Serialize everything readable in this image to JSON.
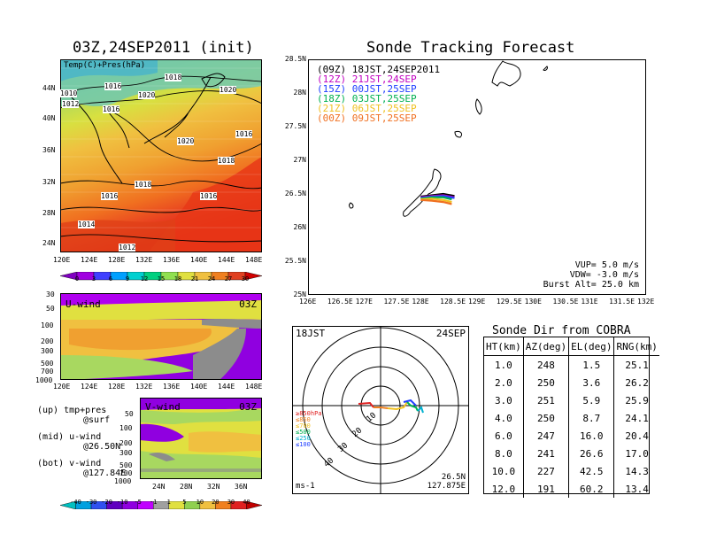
{
  "left_title": "03Z,24SEP2011 (init)",
  "right_title": "Sonde Tracking Forecast",
  "map_panel": {
    "label": "Temp(C)+Pres(hPa)",
    "lat_ticks": [
      "44N",
      "40N",
      "36N",
      "32N",
      "28N",
      "24N"
    ],
    "lon_ticks": [
      "120E",
      "124E",
      "128E",
      "132E",
      "136E",
      "140E",
      "144E",
      "148E"
    ],
    "isobars": [
      "1016",
      "1018",
      "1020",
      "1020",
      "1012",
      "1016",
      "1018",
      "1016",
      "1018",
      "1016",
      "1016",
      "1014",
      "1012",
      "1020",
      "1010"
    ],
    "colorbar_ticks": [
      "0",
      "3",
      "6",
      "9",
      "12",
      "15",
      "18",
      "21",
      "24",
      "27",
      "30"
    ],
    "colorbar_colors": [
      "#8000c0",
      "#a000e0",
      "#4040ff",
      "#00a0ff",
      "#00d0d0",
      "#00d080",
      "#90e050",
      "#e0e040",
      "#f0c040",
      "#f08020",
      "#e04020",
      "#d00000"
    ]
  },
  "u_panel": {
    "label": "U-wind",
    "time": "03Z",
    "p_ticks": [
      "30",
      "50",
      "100",
      "200",
      "300",
      "500",
      "700",
      "1000"
    ],
    "lon_ticks": [
      "120E",
      "124E",
      "128E",
      "132E",
      "136E",
      "140E",
      "144E",
      "148E"
    ]
  },
  "v_panel": {
    "label": "V-wind",
    "time": "03Z",
    "p_ticks": [
      "50",
      "100",
      "200",
      "300",
      "500",
      "700",
      "1000"
    ],
    "lat_ticks": [
      "24N",
      "28N",
      "32N",
      "36N"
    ]
  },
  "notes": [
    [
      "(up) tmp+pres",
      "@surf"
    ],
    [
      "(mid) u-wind",
      "@26.50N"
    ],
    [
      "(bot) v-wind",
      "@127.84E"
    ]
  ],
  "wind_colorbar": {
    "ticks": [
      "-40",
      "-30",
      "-20",
      "-10",
      "-5",
      "-1",
      "1",
      "5",
      "10",
      "20",
      "30",
      "40"
    ],
    "colors": [
      "#00c0c0",
      "#00a0e0",
      "#3050f0",
      "#6000c0",
      "#9000e0",
      "#c000ff",
      "#a0a0a0",
      "#e0e040",
      "#90d050",
      "#f0c040",
      "#f08020",
      "#e02020",
      "#c00000"
    ]
  },
  "track_panel": {
    "legend": [
      {
        "utc": "(09Z)",
        "text": "18JST,24SEP2011",
        "color": "#000000"
      },
      {
        "utc": "(12Z)",
        "text": "21JST,24SEP",
        "color": "#c000c0"
      },
      {
        "utc": "(15Z)",
        "text": "00JST,25SEP",
        "color": "#2040ff"
      },
      {
        "utc": "(18Z)",
        "text": "03JST,25SEP",
        "color": "#00b050"
      },
      {
        "utc": "(21Z)",
        "text": "06JST,25SEP",
        "color": "#f0c020"
      },
      {
        "utc": "(00Z)",
        "text": "09JST,25SEP",
        "color": "#f07020"
      }
    ],
    "lat_ticks": [
      "28.5N",
      "28N",
      "27.5N",
      "27N",
      "26.5N",
      "26N",
      "25.5N",
      "25N"
    ],
    "lon_ticks": [
      "126E",
      "126.5E",
      "127E",
      "127.5E",
      "128E",
      "128.5E",
      "129E",
      "129.5E",
      "130E",
      "130.5E",
      "131E",
      "131.5E",
      "132E"
    ],
    "params": [
      "VUP= 5.0 m/s",
      "VDW= -3.0 m/s",
      "Burst Alt= 25.0 km"
    ]
  },
  "chart_data": [
    {
      "type": "line",
      "title": "Sonde Tracking Forecast",
      "xlim": [
        126,
        132
      ],
      "ylim": [
        25,
        28.5
      ],
      "series": [
        {
          "name": "(09Z) 18JST,24SEP2011",
          "x": [
            128.0,
            128.2,
            128.4,
            128.6
          ],
          "y": [
            26.46,
            26.48,
            26.5,
            26.47
          ]
        },
        {
          "name": "(12Z) 21JST,24SEP",
          "x": [
            128.0,
            128.2,
            128.4,
            128.6
          ],
          "y": [
            26.45,
            26.47,
            26.48,
            26.45
          ]
        },
        {
          "name": "(15Z) 00JST,25SEP",
          "x": [
            128.0,
            128.2,
            128.4,
            128.6
          ],
          "y": [
            26.44,
            26.46,
            26.47,
            26.44
          ]
        },
        {
          "name": "(18Z) 03JST,25SEP",
          "x": [
            128.0,
            128.2,
            128.4,
            128.55
          ],
          "y": [
            26.43,
            26.45,
            26.45,
            26.42
          ]
        },
        {
          "name": "(21Z) 06JST,25SEP",
          "x": [
            128.0,
            128.2,
            128.4,
            128.55
          ],
          "y": [
            26.42,
            26.43,
            26.41,
            26.38
          ]
        },
        {
          "name": "(00Z) 09JST,25SEP",
          "x": [
            128.0,
            128.2,
            128.4,
            128.55
          ],
          "y": [
            26.41,
            26.4,
            26.38,
            26.35
          ]
        }
      ]
    },
    {
      "type": "table",
      "title": "Sonde Dir from COBRA",
      "columns": [
        "HT(km)",
        "AZ(deg)",
        "EL(deg)",
        "RNG(km)"
      ],
      "rows": [
        [
          "1.0",
          "248",
          "1.5",
          "25.1"
        ],
        [
          "2.0",
          "250",
          "3.6",
          "26.2"
        ],
        [
          "3.0",
          "251",
          "5.9",
          "25.9"
        ],
        [
          "4.0",
          "250",
          "8.7",
          "24.1"
        ],
        [
          "6.0",
          "247",
          "16.0",
          "20.4"
        ],
        [
          "8.0",
          "241",
          "26.6",
          "17.0"
        ],
        [
          "10.0",
          "227",
          "42.5",
          "14.3"
        ],
        [
          "12.0",
          "191",
          "60.2",
          "13.4"
        ]
      ]
    }
  ],
  "polar_panel": {
    "time_left": "18JST",
    "time_right": "24SEP",
    "ring_labels": [
      "10",
      "20",
      "30",
      "40"
    ],
    "height_legend": [
      {
        "text": "≥850hPa",
        "color": "#e02020"
      },
      {
        "text": "≤850",
        "color": "#f08020"
      },
      {
        "text": "≤700",
        "color": "#f0c020"
      },
      {
        "text": "≤500",
        "color": "#00b050"
      },
      {
        "text": "≤250",
        "color": "#00b0d0"
      },
      {
        "text": "≤100",
        "color": "#2040ff"
      }
    ],
    "unit": "ms-1",
    "loc_lat": "26.5N",
    "loc_lon": "127.875E"
  }
}
